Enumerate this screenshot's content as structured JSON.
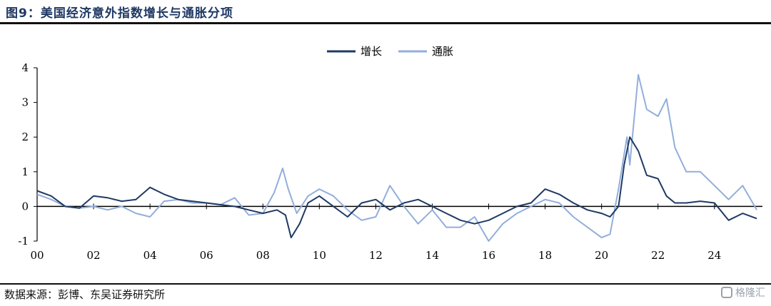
{
  "header": {
    "title": "图9：美国经济意外指数增长与通胀分项"
  },
  "footer": {
    "source": "数据来源：彭博、东吴证券研究所",
    "watermark": "格隆汇"
  },
  "colors": {
    "growth": "#1f3a64",
    "inflation": "#92aedb",
    "axis": "#000000"
  },
  "chart_data": {
    "type": "line",
    "title": "",
    "xlabel": "",
    "ylabel": "",
    "xlim": [
      2000,
      2025.7
    ],
    "ylim": [
      -1,
      4
    ],
    "yticks": [
      -1,
      0,
      1,
      2,
      3,
      4
    ],
    "xtick_labels": [
      "00",
      "02",
      "04",
      "06",
      "08",
      "10",
      "12",
      "14",
      "16",
      "18",
      "20",
      "22",
      "24"
    ],
    "xtick_years": [
      2000,
      2002,
      2004,
      2006,
      2008,
      2010,
      2012,
      2014,
      2016,
      2018,
      2020,
      2022,
      2024
    ],
    "legend": {
      "placement": "top-center"
    },
    "series": [
      {
        "name": "增长",
        "color": "#1f3a64",
        "x": [
          2000,
          2000.5,
          2001,
          2001.5,
          2002,
          2002.5,
          2003,
          2003.5,
          2004,
          2004.5,
          2005,
          2005.5,
          2006,
          2006.5,
          2007,
          2007.5,
          2008,
          2008.5,
          2008.8,
          2009,
          2009.3,
          2009.6,
          2010,
          2010.5,
          2011,
          2011.5,
          2012,
          2012.5,
          2013,
          2013.5,
          2014,
          2014.5,
          2015,
          2015.5,
          2016,
          2016.5,
          2017,
          2017.5,
          2018,
          2018.5,
          2019,
          2019.5,
          2020,
          2020.3,
          2020.6,
          2020.8,
          2021,
          2021.3,
          2021.6,
          2022,
          2022.3,
          2022.6,
          2023,
          2023.5,
          2024,
          2024.5,
          2025,
          2025.5
        ],
        "y": [
          0.45,
          0.3,
          0.0,
          -0.05,
          0.3,
          0.25,
          0.15,
          0.2,
          0.55,
          0.35,
          0.2,
          0.15,
          0.1,
          0.05,
          0.0,
          -0.1,
          -0.2,
          -0.1,
          -0.25,
          -0.9,
          -0.5,
          0.1,
          0.3,
          0.0,
          -0.3,
          0.1,
          0.2,
          -0.1,
          0.1,
          0.2,
          0.0,
          -0.2,
          -0.4,
          -0.5,
          -0.4,
          -0.2,
          0.0,
          0.1,
          0.5,
          0.35,
          0.1,
          -0.1,
          -0.2,
          -0.3,
          0.0,
          1.2,
          2.0,
          1.6,
          0.9,
          0.8,
          0.3,
          0.1,
          0.1,
          0.15,
          0.1,
          -0.4,
          -0.2,
          -0.35
        ]
      },
      {
        "name": "通胀",
        "color": "#92aedb",
        "x": [
          2000,
          2000.5,
          2001,
          2001.5,
          2002,
          2002.5,
          2003,
          2003.5,
          2004,
          2004.5,
          2005,
          2005.5,
          2006,
          2006.5,
          2007,
          2007.5,
          2008,
          2008.4,
          2008.7,
          2008.9,
          2009.2,
          2009.6,
          2010,
          2010.5,
          2011,
          2011.5,
          2012,
          2012.5,
          2013,
          2013.5,
          2014,
          2014.5,
          2015,
          2015.5,
          2016,
          2016.5,
          2017,
          2017.5,
          2018,
          2018.5,
          2019,
          2019.5,
          2020,
          2020.3,
          2020.6,
          2020.9,
          2021,
          2021.3,
          2021.6,
          2022,
          2022.3,
          2022.6,
          2023,
          2023.5,
          2024,
          2024.5,
          2025,
          2025.5
        ],
        "y": [
          0.35,
          0.2,
          0.0,
          -0.05,
          0.0,
          -0.1,
          0.0,
          -0.2,
          -0.3,
          0.15,
          0.2,
          0.1,
          0.1,
          0.05,
          0.25,
          -0.25,
          -0.2,
          0.4,
          1.1,
          0.5,
          -0.2,
          0.3,
          0.5,
          0.3,
          -0.1,
          -0.4,
          -0.3,
          0.6,
          0.0,
          -0.5,
          -0.1,
          -0.6,
          -0.6,
          -0.3,
          -1.0,
          -0.5,
          -0.2,
          0.0,
          0.2,
          0.1,
          -0.3,
          -0.6,
          -0.9,
          -0.8,
          0.5,
          2.0,
          1.2,
          3.8,
          2.8,
          2.6,
          3.1,
          1.7,
          1.0,
          1.0,
          0.6,
          0.2,
          0.6,
          -0.1
        ]
      }
    ]
  }
}
